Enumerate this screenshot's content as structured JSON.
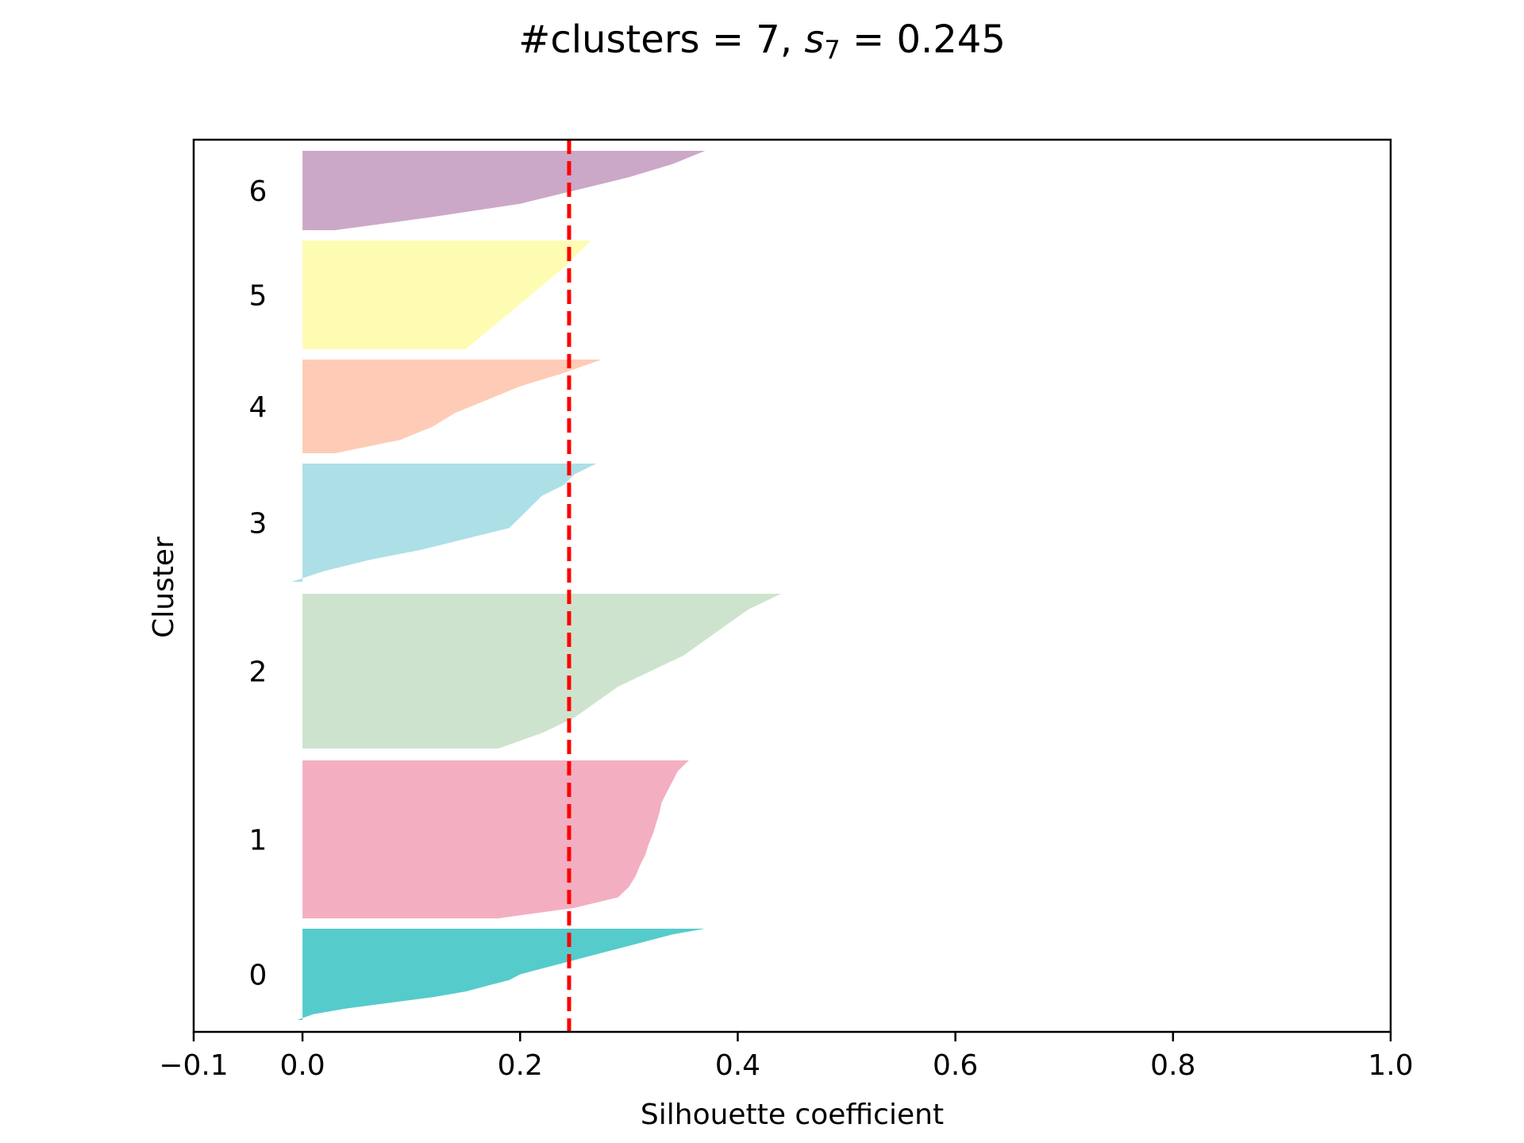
{
  "chart_data": {
    "type": "area",
    "title": {
      "prefix": "#clusters = 7, ",
      "symbol": "s",
      "subscript": "7",
      "suffix": " = 0.245"
    },
    "xlabel": "Silhouette coefficient",
    "ylabel": "Cluster",
    "xlim": [
      -0.1,
      1.0
    ],
    "xticks": [
      -0.1,
      0.0,
      0.2,
      0.4,
      0.6,
      0.8,
      1.0
    ],
    "xtick_labels": [
      "−0.1",
      "0.0",
      "0.2",
      "0.4",
      "0.6",
      "0.8",
      "1.0"
    ],
    "grid": false,
    "average_silhouette": 0.245,
    "average_line_color": "#ff0000",
    "clusters": [
      {
        "label": "0",
        "color": "#56cbcb",
        "silhouette_sorted_desc": [
          0.37,
          0.34,
          0.32,
          0.3,
          0.28,
          0.26,
          0.24,
          0.22,
          0.2,
          0.19,
          0.17,
          0.15,
          0.12,
          0.08,
          0.04,
          0.01,
          -0.005
        ]
      },
      {
        "label": "1",
        "color": "#f3afc1",
        "silhouette_sorted_desc": [
          0.355,
          0.345,
          0.34,
          0.335,
          0.33,
          0.328,
          0.325,
          0.322,
          0.318,
          0.315,
          0.31,
          0.306,
          0.3,
          0.29,
          0.25,
          0.18
        ]
      },
      {
        "label": "2",
        "color": "#cee3cd",
        "silhouette_sorted_desc": [
          0.44,
          0.41,
          0.39,
          0.37,
          0.35,
          0.32,
          0.29,
          0.27,
          0.25,
          0.22,
          0.18
        ]
      },
      {
        "label": "3",
        "color": "#addfe6",
        "silhouette_sorted_desc": [
          0.27,
          0.25,
          0.24,
          0.22,
          0.21,
          0.2,
          0.19,
          0.15,
          0.11,
          0.06,
          0.02,
          -0.01
        ]
      },
      {
        "label": "4",
        "color": "#feccb6",
        "silhouette_sorted_desc": [
          0.275,
          0.24,
          0.2,
          0.17,
          0.14,
          0.12,
          0.09,
          0.03
        ]
      },
      {
        "label": "5",
        "color": "#fefcb3",
        "silhouette_sorted_desc": [
          0.265,
          0.24,
          0.21,
          0.18,
          0.15
        ]
      },
      {
        "label": "6",
        "color": "#cba8c8",
        "silhouette_sorted_desc": [
          0.37,
          0.34,
          0.3,
          0.25,
          0.2,
          0.12,
          0.03
        ]
      }
    ]
  }
}
